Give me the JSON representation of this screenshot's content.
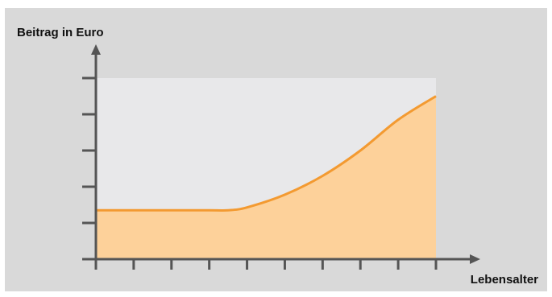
{
  "chart_data": {
    "type": "area",
    "title": "",
    "xlabel": "Lebensalter",
    "ylabel": "Beitrag in Euro",
    "x": [
      0,
      1,
      2,
      3,
      3.5,
      4,
      5,
      6,
      7,
      8,
      9
    ],
    "values": [
      1.35,
      1.35,
      1.35,
      1.35,
      1.35,
      1.43,
      1.78,
      2.3,
      3.0,
      3.85,
      4.5
    ],
    "xlim": [
      0,
      9
    ],
    "ylim": [
      0,
      5
    ],
    "x_tick_count": 10,
    "y_tick_count": 6,
    "grid": false,
    "colors": {
      "panel": "#d9d9d9",
      "plot_background": "#e8e8ea",
      "fill": "#fdd19a",
      "line": "#f39a31",
      "axis": "#555555",
      "text": "#111111"
    }
  }
}
